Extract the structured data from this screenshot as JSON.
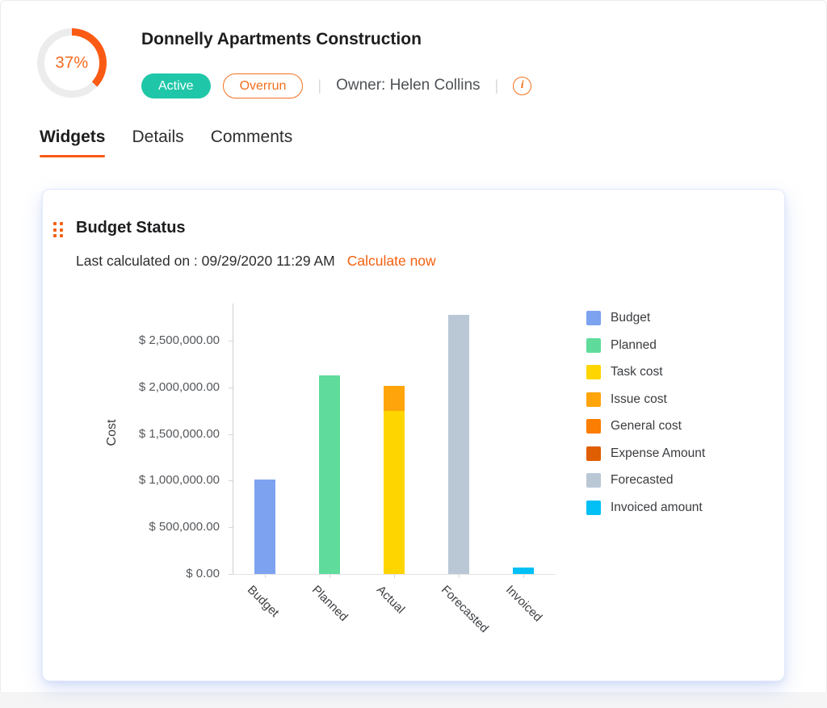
{
  "header": {
    "progress_percent": "37%",
    "title": "Donnelly Apartments Construction",
    "status_badge": "Active",
    "overrun_badge": "Overrun",
    "separator": "|",
    "owner_label": "Owner: Helen Collins",
    "info_icon_glyph": "i"
  },
  "tabs": [
    {
      "label": "Widgets",
      "active": true
    },
    {
      "label": "Details",
      "active": false
    },
    {
      "label": "Comments",
      "active": false
    }
  ],
  "widget": {
    "title": "Budget Status",
    "last_calculated": "Last calculated on : 09/29/2020 11:29 AM",
    "calculate_now": "Calculate now"
  },
  "colors": {
    "accent_orange": "#f4600f",
    "active_badge_teal": "#1fc7a8",
    "ring_arc": "#fa5a14",
    "ring_track": "#ececec"
  },
  "chart_data": {
    "type": "bar",
    "title": "Budget Status",
    "xlabel": "",
    "ylabel": "Cost",
    "ylim": [
      0,
      2900000
    ],
    "grid": false,
    "legend_position": "right",
    "categories": [
      "Budget",
      "Planned",
      "Actual",
      "Forecasted",
      "Invoiced"
    ],
    "stacks": [
      {
        "category": "Budget",
        "segments": [
          {
            "series": "Budget",
            "value": 1010000,
            "color": "#7da2f0"
          }
        ]
      },
      {
        "category": "Planned",
        "segments": [
          {
            "series": "Planned",
            "value": 2130000,
            "color": "#5fdc9b"
          }
        ]
      },
      {
        "category": "Actual",
        "segments": [
          {
            "series": "Task cost",
            "value": 1750000,
            "color": "#ffd500"
          },
          {
            "series": "Issue cost",
            "value": 270000,
            "color": "#ffa40b"
          }
        ]
      },
      {
        "category": "Forecasted",
        "segments": [
          {
            "series": "Forecasted",
            "value": 2780000,
            "color": "#bac8d6"
          }
        ]
      },
      {
        "category": "Invoiced",
        "segments": [
          {
            "series": "Invoiced amount",
            "value": 70000,
            "color": "#01c0f6"
          }
        ]
      }
    ],
    "legend": [
      {
        "label": "Budget",
        "color": "#7da2f0"
      },
      {
        "label": "Planned",
        "color": "#5fdc9b"
      },
      {
        "label": "Task cost",
        "color": "#ffd500"
      },
      {
        "label": "Issue cost",
        "color": "#ffa40b"
      },
      {
        "label": "General cost",
        "color": "#fb7d01"
      },
      {
        "label": "Expense Amount",
        "color": "#e05e02"
      },
      {
        "label": "Forecasted",
        "color": "#bac8d6"
      },
      {
        "label": "Invoiced amount",
        "color": "#01c0f6"
      }
    ],
    "yticks": [
      {
        "value": 0,
        "label": "$ 0.00"
      },
      {
        "value": 500000,
        "label": "$ 500,000.00"
      },
      {
        "value": 1000000,
        "label": "$ 1,000,000.00"
      },
      {
        "value": 1500000,
        "label": "$ 1,500,000.00"
      },
      {
        "value": 2000000,
        "label": "$ 2,000,000.00"
      },
      {
        "value": 2500000,
        "label": "$ 2,500,000.00"
      }
    ]
  }
}
